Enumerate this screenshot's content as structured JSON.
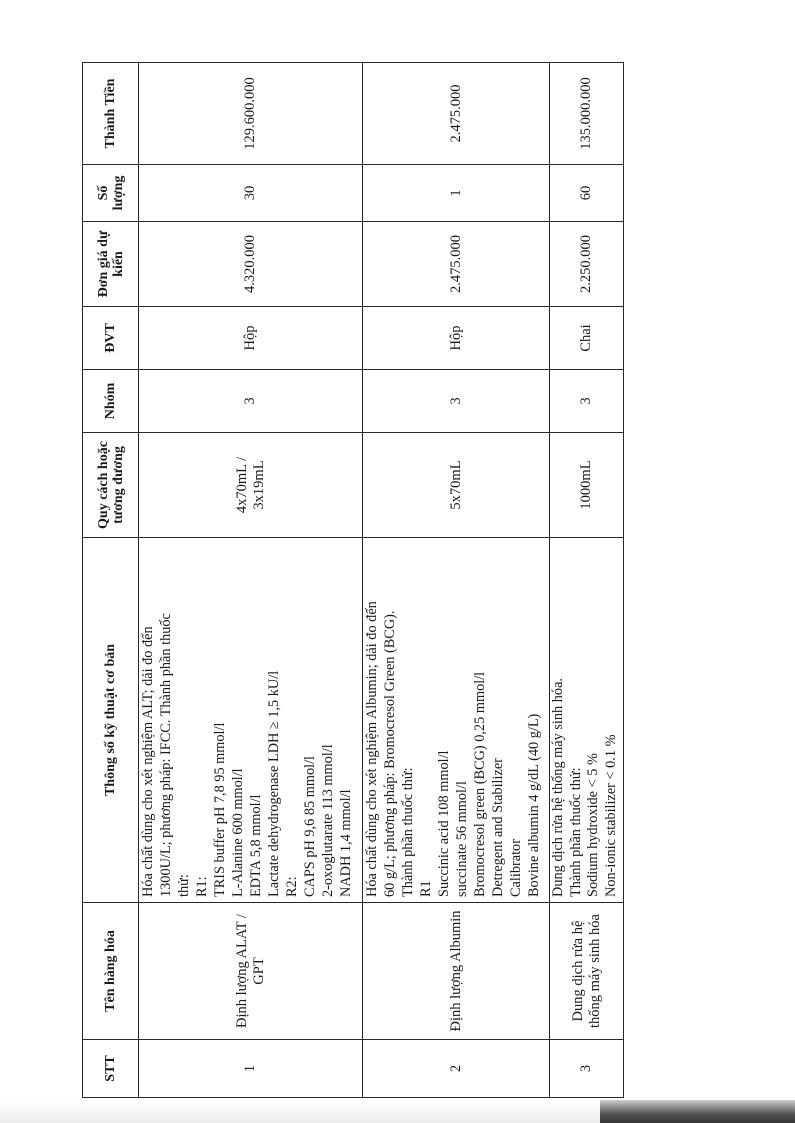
{
  "table": {
    "headers": [
      "STT",
      "Tên hàng hóa",
      "Thông số kỹ thuật cơ bản",
      "Quy cách hoặc tương đương",
      "Nhóm",
      "ĐVT",
      "Đơn giá dự kiến",
      "Số lượng",
      "Thành Tiền"
    ],
    "rows": [
      {
        "stt": "1",
        "name": "Định lượng ALAT / GPT",
        "spec": [
          "Hóa chất dùng cho xét nghiệm ALT; dải đo đến",
          "1300U/L; phương pháp: IFCC. Thành phần thuốc",
          "thử:",
          "R1:",
          "TRIS buffer pH 7,8 95 mmol/l",
          "L-Alanine 600 mmol/l",
          "EDTA 5,8 mmol/l",
          "Lactate dehydrogenase LDH ≥ 1,5 kU/l",
          "R2:",
          "CAPS pH 9,6 85 mmol/l",
          "2-oxoglutarate 113 mmol/l",
          "NADH 1,4 mmol/l"
        ],
        "quy_cach": "4x70mL / 3x19mL",
        "nhom": "3",
        "dvt": "Hộp",
        "don_gia": "4.320.000",
        "so_luong": "30",
        "thanh_tien": "129.600.000"
      },
      {
        "stt": "2",
        "name": "Định lượng Albumin",
        "spec": [
          "Hóa chất dùng cho xét nghiệm Albumin; dải đo đến",
          "60 g/L; phương pháp: Bromocresol Green (BCG).",
          "Thành phần thuốc thử:",
          "R1",
          "Succinic acid 108 mmol/l",
          "succinate 56 mmol/l",
          "Bromocresol green (BCG) 0,25 mmol/l",
          "Detregent and Stabilizer",
          "Calibrator",
          "Bovine albumin 4 g/dL (40 g/L)"
        ],
        "quy_cach": "5x70mL",
        "nhom": "3",
        "dvt": "Hộp",
        "don_gia": "2.475.000",
        "so_luong": "1",
        "thanh_tien": "2.475.000"
      },
      {
        "stt": "3",
        "name": "Dung dịch rửa hệ thống máy sinh hóa",
        "spec": [
          "Dung dịch rửa hệ thống máy sinh hóa.",
          "Thành phần thuốc thử:",
          "Sodium hydroxide < 5 %",
          "Non-ionic stabilizer < 0.1 %"
        ],
        "quy_cach": "1000mL",
        "nhom": "3",
        "dvt": "Chai",
        "don_gia": "2.250.000",
        "so_luong": "60",
        "thanh_tien": "135.000.000"
      }
    ]
  }
}
